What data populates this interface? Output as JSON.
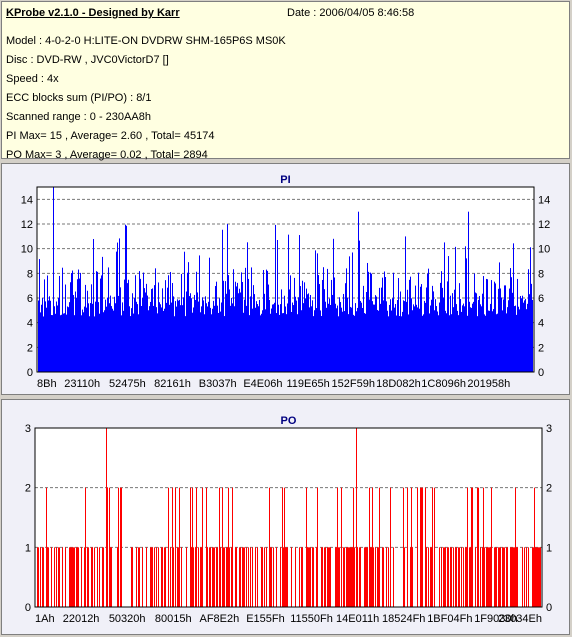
{
  "info": {
    "title": "KProbe v2.1.0 - Designed by Karr",
    "date": "Date : 2006/04/05 8:46:58",
    "lines": [
      "Model : 4-0-2-0 H:LITE-ON DVDRW SHM-165P6S MS0K",
      "Disc : DVD-RW , JVC0VictorD7 []",
      "Speed : 4x",
      "ECC blocks sum (PI/PO) : 8/1",
      "Scanned range : 0 - 230AA8h",
      "PI Max= 15 , Average= 2.60 , Total= 45174",
      "PO Max= 3 , Average= 0.02 , Total= 2894"
    ]
  },
  "chart_data": [
    {
      "type": "bar",
      "title": "PI",
      "ylim": [
        0,
        15
      ],
      "yticks": [
        0,
        2,
        4,
        6,
        8,
        10,
        12,
        14
      ],
      "xticks": [
        "8Bh",
        "23110h",
        "52475h",
        "82161h",
        "B3037h",
        "E4E06h",
        "119E65h",
        "152F59h",
        "18D082h",
        "1C8096h",
        "201958h"
      ],
      "max": 15,
      "average": 2.6,
      "color": "#0000ff",
      "grid": true
    },
    {
      "type": "bar",
      "title": "PO",
      "ylim": [
        0,
        3
      ],
      "yticks": [
        0,
        1,
        2,
        3
      ],
      "xticks": [
        "1Ah",
        "22012h",
        "50320h",
        "80015h",
        "AF8E2h",
        "E155Fh",
        "11550Fh",
        "14E011h",
        "18524Fh",
        "1BF04Fh",
        "1F9030h",
        "23034Eh"
      ],
      "max": 3,
      "average": 0.02,
      "color": "#ff0000",
      "grid": true
    }
  ]
}
